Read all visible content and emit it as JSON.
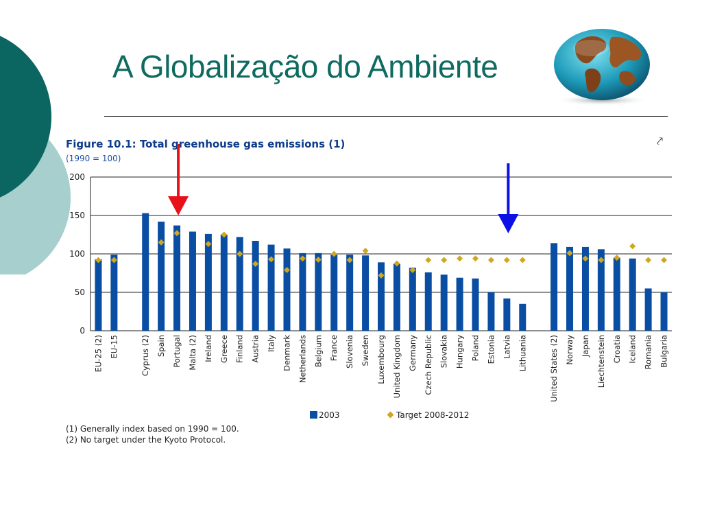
{
  "slide": {
    "title": "A Globalização do Ambiente",
    "colors": {
      "title": "#0f6b60",
      "circle_dark": "#0b6560",
      "circle_light": "#a6cfcd"
    }
  },
  "figure": {
    "title": "Figure 10.1: Total greenhouse gas emissions (1)",
    "subtitle": "(1990 = 100)",
    "corner_icon": "expand-icon",
    "notes": [
      "(1) Generally index based on 1990 = 100.",
      "(2) No target under the Kyoto Protocol."
    ]
  },
  "chart_data": {
    "type": "bar",
    "title": "Figure 10.1: Total greenhouse gas emissions (1)",
    "subtitle": "(1990 = 100)",
    "xlabel": "",
    "ylabel": "",
    "ylim": [
      0,
      200
    ],
    "yticks": [
      0,
      50,
      100,
      150,
      200
    ],
    "grid": true,
    "legend_position": "bottom",
    "categories": [
      "EU-25 (2)",
      "EU-15",
      "",
      "Cyprus (2)",
      "Spain",
      "Portugal",
      "Malta (2)",
      "Ireland",
      "Greece",
      "Finland",
      "Austria",
      "Italy",
      "Denmark",
      "Netherlands",
      "Belgium",
      "France",
      "Slovenia",
      "Sweden",
      "Luxembourg",
      "United Kingdom",
      "Germany",
      "Czech Republic",
      "Slovakia",
      "Hungary",
      "Poland",
      "Estonia",
      "Latvia",
      "Lithuania",
      "",
      "United States (2)",
      "Norway",
      "Japan",
      "Liechtenstein",
      "Croatia",
      "Iceland",
      "Romania",
      "Bulgaria"
    ],
    "series": [
      {
        "name": "2003",
        "kind": "bar",
        "color": "#0a4ea3",
        "values": [
          93,
          99,
          null,
          153,
          142,
          137,
          129,
          126,
          125,
          122,
          117,
          112,
          107,
          101,
          101,
          99,
          99,
          98,
          89,
          87,
          82,
          76,
          73,
          69,
          68,
          50,
          42,
          35,
          null,
          114,
          109,
          109,
          106,
          95,
          94,
          55,
          50
        ]
      },
      {
        "name": "Target 2008-2012",
        "kind": "marker",
        "color": "#cfa721",
        "values": [
          92,
          92,
          null,
          null,
          115,
          127,
          null,
          113,
          125,
          100,
          87,
          93,
          79,
          94,
          92.5,
          100,
          92,
          104,
          72,
          87.5,
          79,
          92,
          92,
          94,
          94,
          92,
          92,
          92,
          null,
          null,
          101,
          94,
          92,
          95,
          110,
          92,
          92
        ]
      }
    ],
    "annotations": [
      {
        "type": "arrow",
        "color": "#e8111a",
        "points_to": "Portugal",
        "direction": "down"
      },
      {
        "type": "arrow",
        "color": "#0b10e6",
        "points_to": "Latvia",
        "direction": "down"
      }
    ]
  },
  "legend": {
    "bar_label": "2003",
    "target_label": "Target 2008-2012"
  }
}
